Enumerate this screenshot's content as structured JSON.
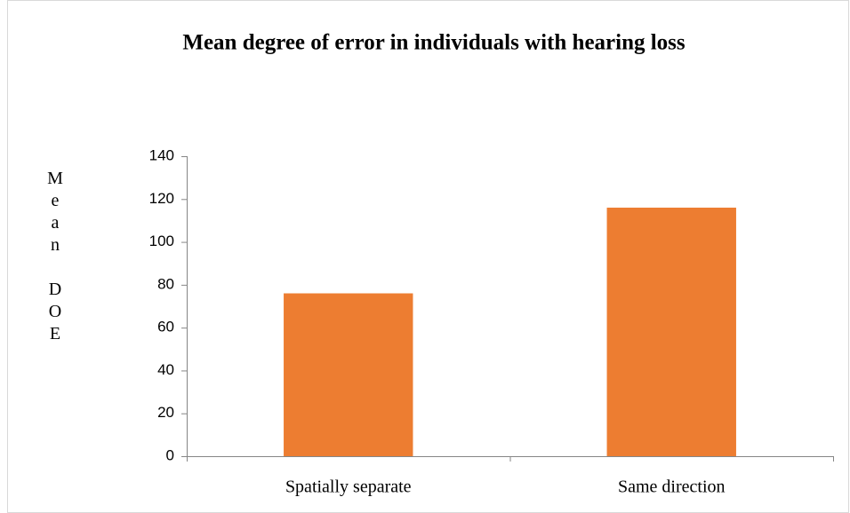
{
  "chart_data": {
    "type": "bar",
    "title": "Mean degree of error in individuals with hearing loss",
    "y_label": "Mean DOE",
    "categories": [
      "Spatially separate",
      "Same direction"
    ],
    "values": [
      76,
      116
    ],
    "color": "#ed7d31",
    "ylim": [
      0,
      140
    ],
    "yticks": [
      0,
      20,
      40,
      60,
      80,
      100,
      120,
      140
    ],
    "grid": false
  }
}
